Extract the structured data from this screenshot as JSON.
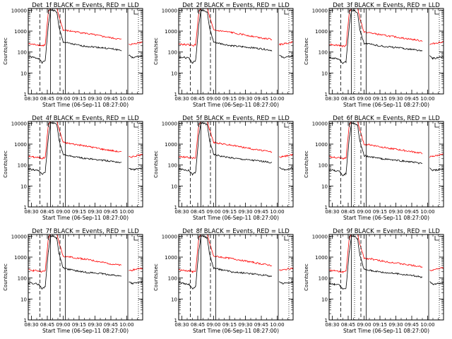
{
  "title_suffix": "BLACK = Events, RED = LLD",
  "xlabel": "Start Time (06-Sep-11 08:27:00)",
  "ylabel": "Counts/sec",
  "x_ticks": [
    "08:30",
    "08:45",
    "09:00",
    "09:15",
    "09:30",
    "09:45",
    "10:00"
  ],
  "y_ticks": [
    "1",
    "10",
    "100",
    "1000",
    "10000"
  ],
  "colors": {
    "events": "#000000",
    "lld": "#ff0000"
  },
  "chart_data": [
    {
      "type": "line",
      "title": "Det_1f BLACK = Events, RED = LLD",
      "xlabel": "Start Time (06-Sep-11 08:27:00)",
      "ylabel": "Counts/sec",
      "ylog": true,
      "ylim": [
        1,
        12000
      ],
      "x_minutes": [
        0,
        5,
        10,
        13,
        16,
        19,
        21,
        24,
        27,
        29,
        33,
        40,
        50,
        60,
        70,
        80,
        88,
        94,
        95,
        98,
        104,
        108
      ],
      "series": [
        {
          "name": "Events",
          "values": [
            60,
            55,
            50,
            30,
            40,
            2000,
            10000,
            10000,
            8000,
            1500,
            300,
            250,
            200,
            180,
            160,
            140,
            120,
            null,
            70,
            55,
            60,
            65
          ]
        },
        {
          "name": "LLD",
          "values": [
            250,
            230,
            220,
            200,
            220,
            8000,
            12000,
            12000,
            12000,
            5000,
            1100,
            1000,
            850,
            700,
            560,
            460,
            400,
            null,
            230,
            240,
            280,
            300
          ]
        }
      ],
      "vlines": [
        {
          "x": 11,
          "style": "dashed"
        },
        {
          "x": 21,
          "style": "solid"
        },
        {
          "x": 30,
          "style": "dashed"
        },
        {
          "x": 35,
          "style": "solid"
        },
        {
          "x": 94,
          "style": "solid"
        },
        {
          "x": 104,
          "style": "dotted"
        }
      ]
    },
    {
      "type": "line",
      "title": "Det_2f BLACK = Events, RED = LLD",
      "xlabel": "Start Time (06-Sep-11 08:27:00)",
      "ylabel": "Counts/sec",
      "ylog": true,
      "ylim": [
        1,
        12000
      ],
      "x_minutes": [
        0,
        5,
        10,
        13,
        16,
        19,
        21,
        24,
        27,
        29,
        33,
        40,
        50,
        60,
        70,
        80,
        88,
        94,
        95,
        98,
        104,
        108
      ],
      "series": [
        {
          "name": "Events",
          "values": [
            60,
            55,
            50,
            30,
            40,
            2000,
            10000,
            10000,
            8000,
            1500,
            300,
            250,
            200,
            180,
            160,
            140,
            120,
            null,
            70,
            55,
            60,
            65
          ]
        },
        {
          "name": "LLD",
          "values": [
            250,
            230,
            220,
            200,
            220,
            8000,
            12000,
            12000,
            12000,
            5000,
            1100,
            1000,
            850,
            700,
            560,
            460,
            400,
            null,
            230,
            240,
            280,
            300
          ]
        }
      ],
      "vlines": [
        {
          "x": 11,
          "style": "dashed"
        },
        {
          "x": 21,
          "style": "solid"
        },
        {
          "x": 30,
          "style": "dashed"
        },
        {
          "x": 35,
          "style": "solid"
        },
        {
          "x": 94,
          "style": "solid"
        },
        {
          "x": 104,
          "style": "dotted"
        }
      ]
    },
    {
      "type": "line",
      "title": "Det_3f BLACK = Events, RED = LLD",
      "xlabel": "Start Time (06-Sep-11 08:27:00)",
      "ylabel": "Counts/sec",
      "ylog": true,
      "ylim": [
        1,
        12000
      ],
      "x_minutes": [
        0,
        5,
        10,
        13,
        16,
        19,
        21,
        24,
        27,
        29,
        33,
        40,
        50,
        60,
        70,
        80,
        88,
        94,
        95,
        98,
        104,
        108
      ],
      "series": [
        {
          "name": "Events",
          "values": [
            55,
            50,
            45,
            28,
            35,
            1800,
            9000,
            10000,
            7000,
            1200,
            260,
            230,
            190,
            170,
            150,
            130,
            110,
            null,
            65,
            50,
            55,
            60
          ]
        },
        {
          "name": "LLD",
          "values": [
            240,
            220,
            210,
            190,
            210,
            7500,
            12000,
            12000,
            12000,
            4000,
            900,
            800,
            650,
            550,
            460,
            390,
            340,
            null,
            230,
            250,
            290,
            310
          ]
        }
      ],
      "vlines": [
        {
          "x": 11,
          "style": "dashed"
        },
        {
          "x": 21,
          "style": "solid"
        },
        {
          "x": 24,
          "style": "dotted"
        },
        {
          "x": 30,
          "style": "dashed"
        },
        {
          "x": 35,
          "style": "solid"
        },
        {
          "x": 94,
          "style": "solid"
        },
        {
          "x": 104,
          "style": "dotted"
        }
      ]
    },
    {
      "type": "line",
      "title": "Det_4f BLACK = Events, RED = LLD",
      "xlabel": "Start Time (06-Sep-11 08:27:00)",
      "ylabel": "Counts/sec",
      "ylog": true,
      "ylim": [
        1,
        12000
      ],
      "x_minutes": [
        0,
        5,
        10,
        13,
        16,
        19,
        21,
        24,
        27,
        29,
        33,
        40,
        50,
        60,
        70,
        80,
        88,
        94,
        95,
        98,
        104,
        108
      ],
      "series": [
        {
          "name": "Events",
          "values": [
            65,
            60,
            55,
            35,
            45,
            2200,
            10000,
            10000,
            8500,
            1600,
            320,
            270,
            220,
            190,
            170,
            150,
            130,
            null,
            75,
            60,
            65,
            70
          ]
        },
        {
          "name": "LLD",
          "values": [
            260,
            240,
            230,
            210,
            230,
            8500,
            12000,
            12000,
            12000,
            5200,
            1200,
            1050,
            880,
            720,
            580,
            480,
            420,
            null,
            240,
            250,
            290,
            310
          ]
        }
      ],
      "vlines": [
        {
          "x": 11,
          "style": "dashed"
        },
        {
          "x": 21,
          "style": "solid"
        },
        {
          "x": 30,
          "style": "dashed"
        },
        {
          "x": 35,
          "style": "solid"
        },
        {
          "x": 94,
          "style": "solid"
        },
        {
          "x": 104,
          "style": "dotted"
        }
      ]
    },
    {
      "type": "line",
      "title": "Det_5f BLACK = Events, RED = LLD",
      "xlabel": "Start Time (06-Sep-11 08:27:00)",
      "ylabel": "Counts/sec",
      "ylog": true,
      "ylim": [
        1,
        12000
      ],
      "x_minutes": [
        0,
        5,
        10,
        13,
        16,
        19,
        21,
        24,
        27,
        29,
        33,
        40,
        50,
        60,
        70,
        80,
        88,
        94,
        95,
        98,
        104,
        108
      ],
      "series": [
        {
          "name": "Events",
          "values": [
            65,
            60,
            55,
            35,
            45,
            2200,
            10000,
            10000,
            8500,
            1600,
            320,
            270,
            220,
            190,
            170,
            150,
            130,
            null,
            75,
            60,
            65,
            70
          ]
        },
        {
          "name": "LLD",
          "values": [
            260,
            240,
            230,
            210,
            230,
            8500,
            12000,
            12000,
            12000,
            5200,
            1200,
            1050,
            880,
            720,
            580,
            480,
            420,
            null,
            240,
            250,
            290,
            310
          ]
        }
      ],
      "vlines": [
        {
          "x": 11,
          "style": "dashed"
        },
        {
          "x": 21,
          "style": "solid"
        },
        {
          "x": 30,
          "style": "dashed"
        },
        {
          "x": 35,
          "style": "solid"
        },
        {
          "x": 94,
          "style": "solid"
        },
        {
          "x": 104,
          "style": "dotted"
        }
      ]
    },
    {
      "type": "line",
      "title": "Det_6f BLACK = Events, RED = LLD",
      "xlabel": "Start Time (06-Sep-11 08:27:00)",
      "ylabel": "Counts/sec",
      "ylog": true,
      "ylim": [
        1,
        12000
      ],
      "x_minutes": [
        0,
        5,
        10,
        13,
        16,
        19,
        21,
        24,
        27,
        29,
        33,
        40,
        50,
        60,
        70,
        80,
        88,
        94,
        95,
        98,
        104,
        108
      ],
      "series": [
        {
          "name": "Events",
          "values": [
            60,
            55,
            50,
            32,
            40,
            2000,
            9500,
            10000,
            7500,
            1300,
            280,
            240,
            200,
            175,
            155,
            135,
            115,
            null,
            70,
            55,
            60,
            65
          ]
        },
        {
          "name": "LLD",
          "values": [
            250,
            230,
            220,
            200,
            220,
            8000,
            12000,
            12000,
            12000,
            4500,
            1000,
            900,
            720,
            600,
            500,
            420,
            360,
            null,
            240,
            260,
            300,
            320
          ]
        }
      ],
      "vlines": [
        {
          "x": 11,
          "style": "dashed"
        },
        {
          "x": 21,
          "style": "solid"
        },
        {
          "x": 24,
          "style": "dotted"
        },
        {
          "x": 30,
          "style": "dashed"
        },
        {
          "x": 35,
          "style": "solid"
        },
        {
          "x": 94,
          "style": "solid"
        },
        {
          "x": 104,
          "style": "dotted"
        }
      ]
    },
    {
      "type": "line",
      "title": "Det_7f BLACK = Events, RED = LLD",
      "xlabel": "Start Time (06-Sep-11 08:27:00)",
      "ylabel": "Counts/sec",
      "ylog": true,
      "ylim": [
        1,
        12000
      ],
      "x_minutes": [
        0,
        5,
        10,
        13,
        16,
        19,
        21,
        24,
        27,
        29,
        33,
        40,
        50,
        60,
        70,
        80,
        88,
        94,
        95,
        98,
        104,
        108
      ],
      "series": [
        {
          "name": "Events",
          "values": [
            60,
            55,
            50,
            30,
            40,
            2000,
            10000,
            10000,
            8000,
            1500,
            300,
            250,
            200,
            180,
            160,
            140,
            120,
            null,
            70,
            55,
            60,
            65
          ]
        },
        {
          "name": "LLD",
          "values": [
            250,
            230,
            220,
            200,
            220,
            8000,
            12000,
            12000,
            12000,
            5000,
            1100,
            1000,
            850,
            700,
            560,
            460,
            400,
            null,
            230,
            240,
            280,
            300
          ]
        }
      ],
      "vlines": [
        {
          "x": 11,
          "style": "dashed"
        },
        {
          "x": 21,
          "style": "solid"
        },
        {
          "x": 30,
          "style": "dashed"
        },
        {
          "x": 35,
          "style": "solid"
        },
        {
          "x": 94,
          "style": "solid"
        },
        {
          "x": 104,
          "style": "dotted"
        }
      ]
    },
    {
      "type": "line",
      "title": "Det_8f BLACK = Events, RED = LLD",
      "xlabel": "Start Time (06-Sep-11 08:27:00)",
      "ylabel": "Counts/sec",
      "ylog": true,
      "ylim": [
        1,
        12000
      ],
      "x_minutes": [
        0,
        5,
        10,
        13,
        16,
        19,
        21,
        24,
        27,
        29,
        33,
        40,
        50,
        60,
        70,
        80,
        88,
        94,
        95,
        98,
        104,
        108
      ],
      "series": [
        {
          "name": "Events",
          "values": [
            60,
            55,
            50,
            30,
            40,
            2000,
            10000,
            10000,
            8000,
            1500,
            300,
            250,
            200,
            180,
            160,
            140,
            120,
            null,
            70,
            55,
            60,
            65
          ]
        },
        {
          "name": "LLD",
          "values": [
            250,
            230,
            220,
            200,
            220,
            8000,
            12000,
            12000,
            12000,
            5000,
            1100,
            1000,
            850,
            700,
            560,
            460,
            400,
            null,
            230,
            240,
            280,
            300
          ]
        }
      ],
      "vlines": [
        {
          "x": 11,
          "style": "dashed"
        },
        {
          "x": 21,
          "style": "solid"
        },
        {
          "x": 30,
          "style": "dashed"
        },
        {
          "x": 35,
          "style": "solid"
        },
        {
          "x": 94,
          "style": "solid"
        },
        {
          "x": 104,
          "style": "dotted"
        }
      ]
    },
    {
      "type": "line",
      "title": "Det_9f BLACK = Events, RED = LLD",
      "xlabel": "Start Time (06-Sep-11 08:27:00)",
      "ylabel": "Counts/sec",
      "ylog": true,
      "ylim": [
        1,
        12000
      ],
      "x_minutes": [
        0,
        5,
        10,
        13,
        16,
        19,
        21,
        24,
        27,
        29,
        33,
        40,
        50,
        60,
        70,
        80,
        88,
        94,
        95,
        98,
        104,
        108
      ],
      "series": [
        {
          "name": "Events",
          "values": [
            55,
            50,
            45,
            28,
            35,
            1800,
            9000,
            10000,
            7000,
            1200,
            260,
            230,
            190,
            170,
            150,
            130,
            110,
            null,
            65,
            50,
            55,
            60
          ]
        },
        {
          "name": "LLD",
          "values": [
            240,
            220,
            210,
            190,
            210,
            7500,
            12000,
            12000,
            12000,
            4000,
            900,
            800,
            650,
            550,
            460,
            390,
            340,
            null,
            230,
            250,
            290,
            310
          ]
        }
      ],
      "vlines": [
        {
          "x": 11,
          "style": "dashed"
        },
        {
          "x": 21,
          "style": "solid"
        },
        {
          "x": 24,
          "style": "dotted"
        },
        {
          "x": 30,
          "style": "dashed"
        },
        {
          "x": 35,
          "style": "solid"
        },
        {
          "x": 94,
          "style": "solid"
        },
        {
          "x": 104,
          "style": "dotted"
        }
      ]
    }
  ]
}
